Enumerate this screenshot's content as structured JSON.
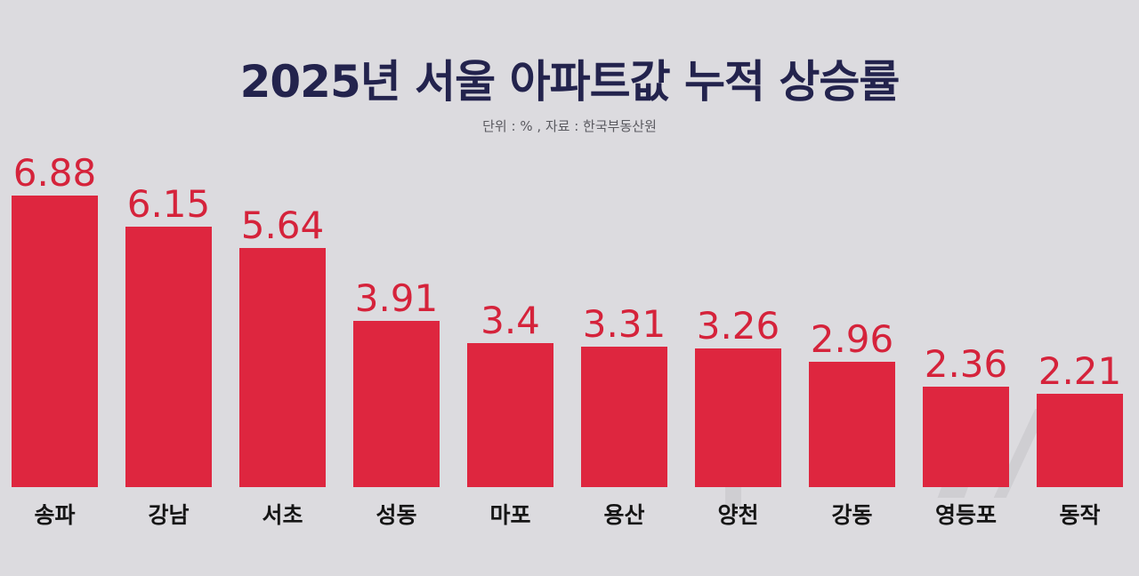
{
  "header": {
    "title": "2025년 서울 아파트값 누적 상승률",
    "subtitle": "단위 : % , 자료 : 한국부동산원"
  },
  "colors": {
    "bar": "#de263f",
    "value_label": "#d5233b",
    "title": "#23234d",
    "background": "#dcdbdf"
  },
  "chart_data": {
    "type": "bar",
    "title": "2025년 서울 아파트값 누적 상승률",
    "subtitle": "단위 : % , 자료 : 한국부동산원",
    "xlabel": "",
    "ylabel": "%",
    "categories": [
      "송파",
      "강남",
      "서초",
      "성동",
      "마포",
      "용산",
      "양천",
      "강동",
      "영등포",
      "동작"
    ],
    "values": [
      6.88,
      6.15,
      5.64,
      3.91,
      3.4,
      3.31,
      3.26,
      2.96,
      2.36,
      2.21
    ],
    "value_labels": [
      "6.88",
      "6.15",
      "5.64",
      "3.91",
      "3.4",
      "3.31",
      "3.26",
      "2.96",
      "2.36",
      "2.21"
    ],
    "ylim": [
      0,
      7
    ],
    "grid": false,
    "legend": null,
    "data_labels": true
  }
}
